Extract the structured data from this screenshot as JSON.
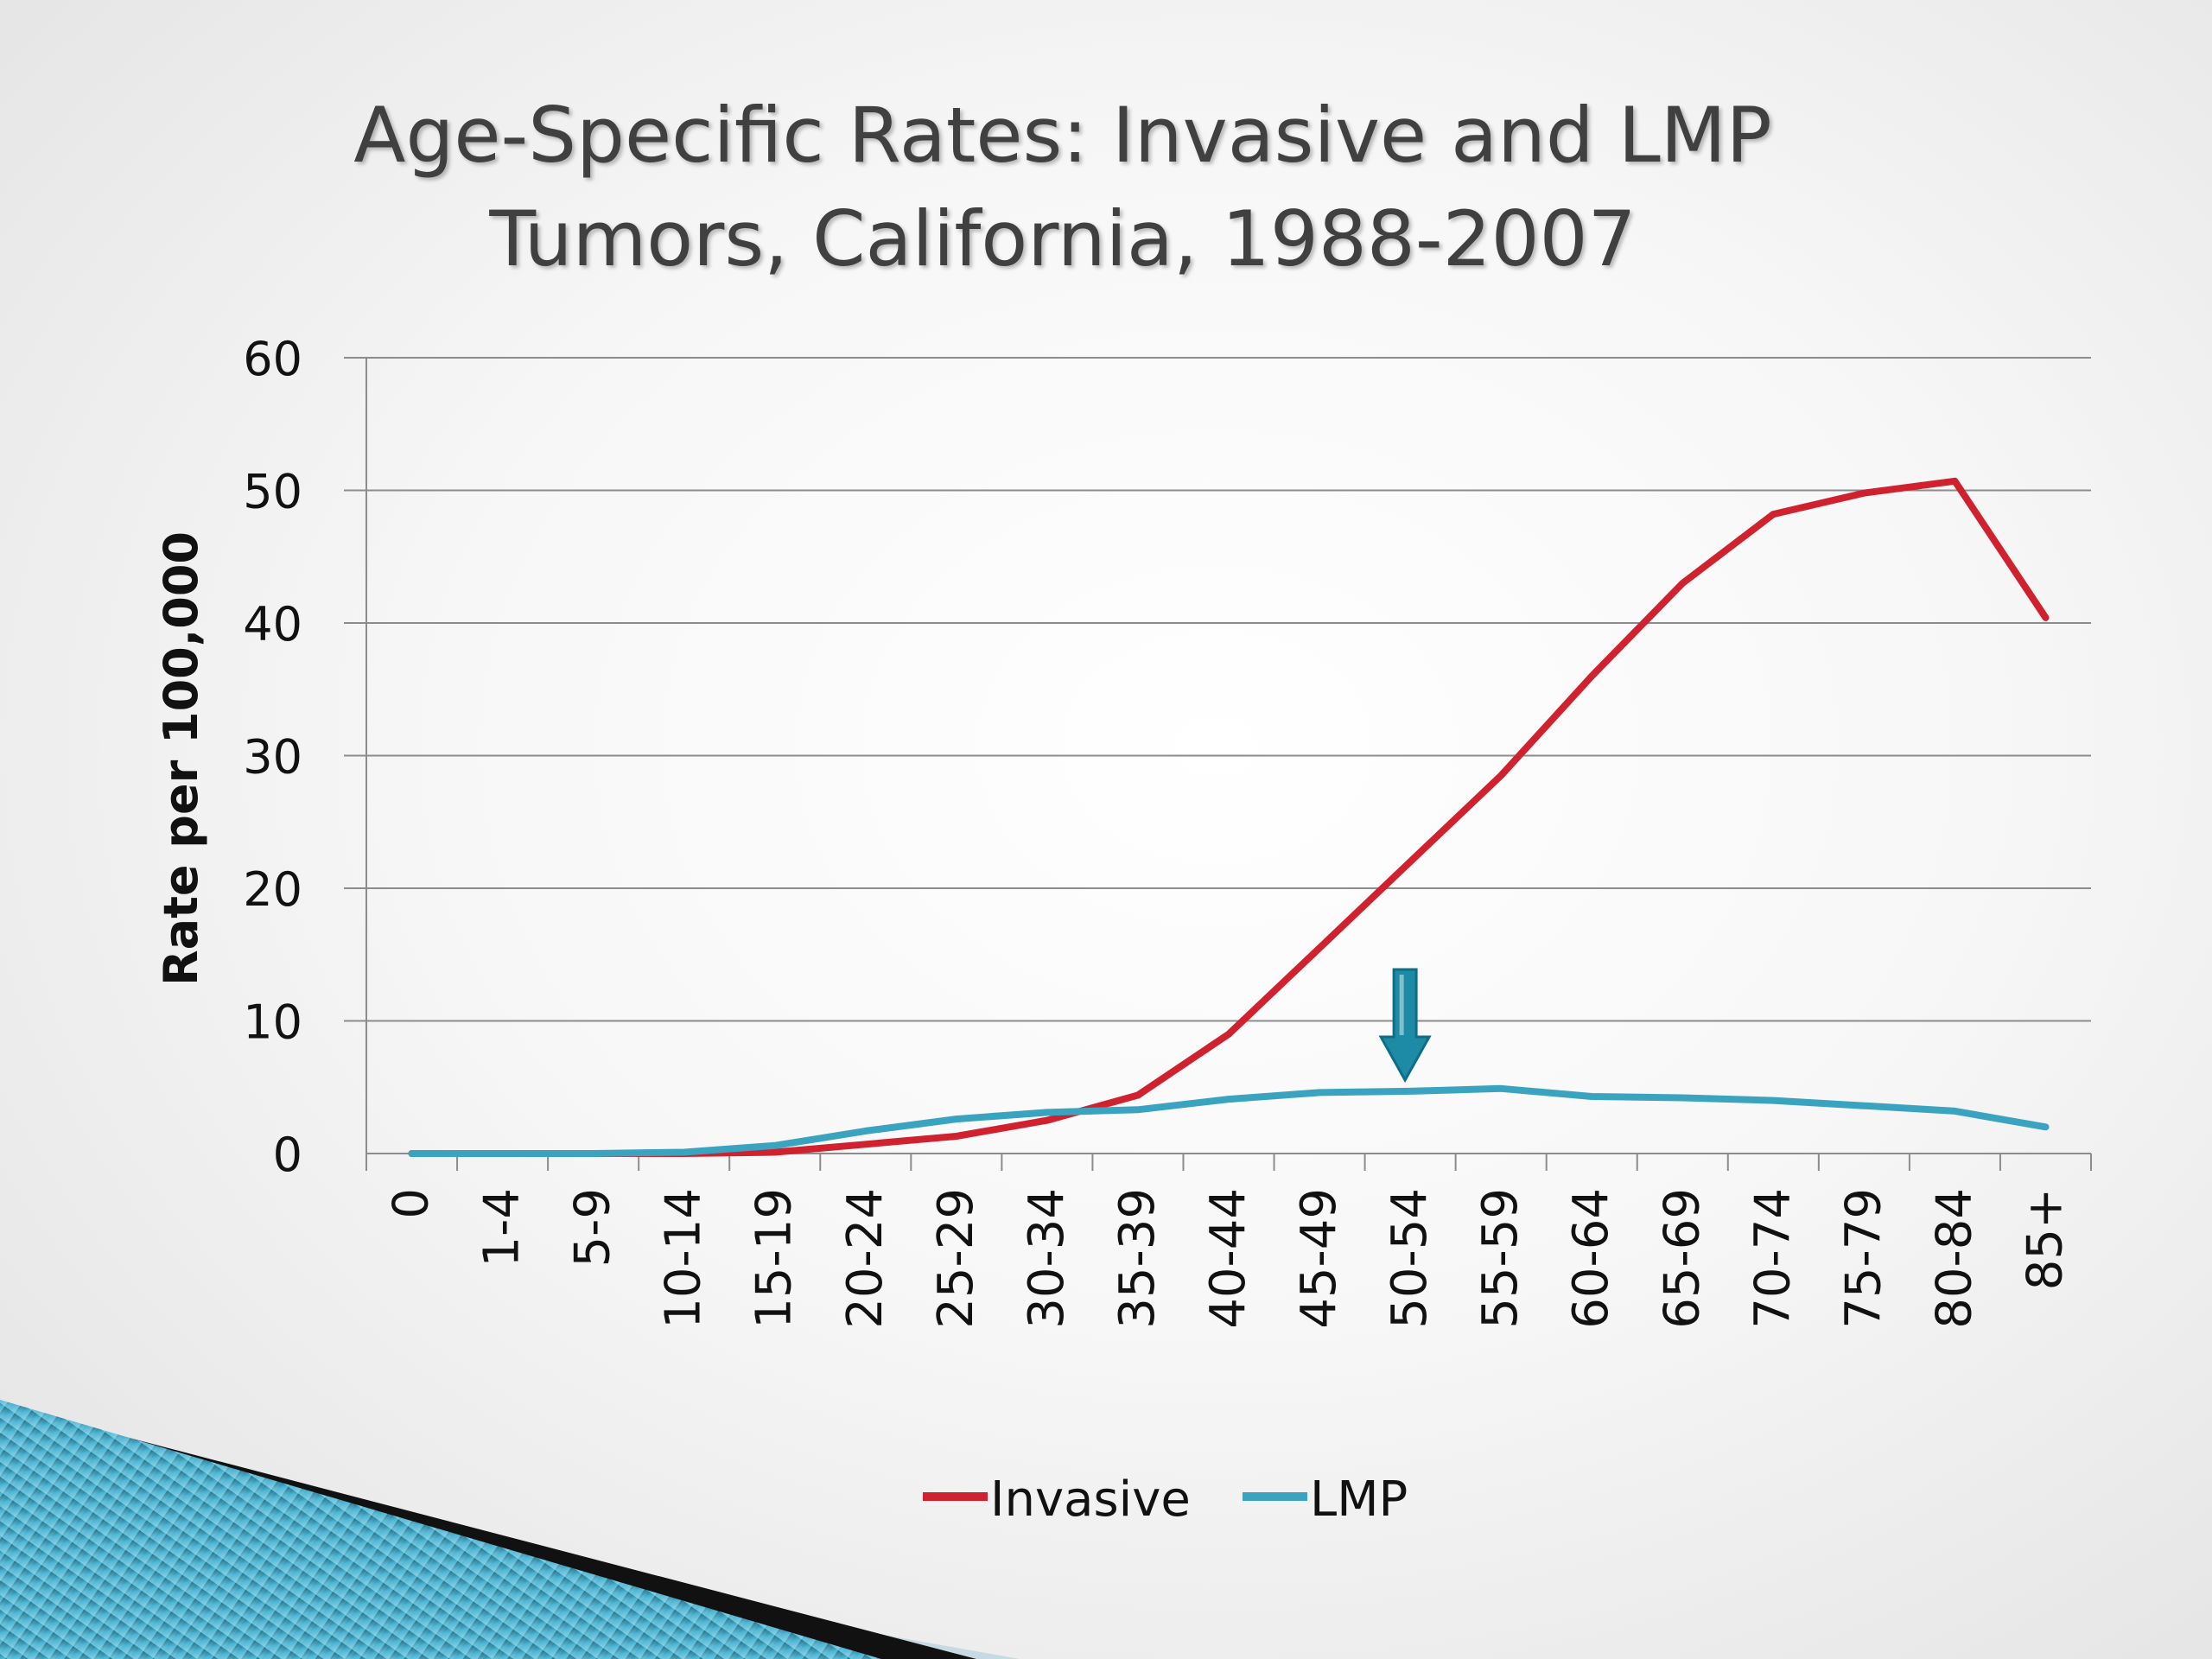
{
  "slide": {
    "title_line1": "Age-Specific Rates: Invasive and LMP",
    "title_line2": "Tumors, California, 1988-2007"
  },
  "colors": {
    "invasive": "#d0222e",
    "lmp": "#3aa3bf",
    "arrow": "#1d8aa6",
    "grid": "#8c8c8c",
    "text": "#111111"
  },
  "chart_data": {
    "type": "line",
    "title": "Age-Specific Rates: Invasive and LMP Tumors, California, 1988-2007",
    "ylabel": "Rate per 100,000",
    "xlabel": "",
    "ylim": [
      0,
      60
    ],
    "yticks": [
      0,
      10,
      20,
      30,
      40,
      50,
      60
    ],
    "grid": true,
    "legend_position": "bottom",
    "categories": [
      "0",
      "1-4",
      "5-9",
      "10-14",
      "15-19",
      "20-24",
      "25-29",
      "30-34",
      "35-39",
      "40-44",
      "45-49",
      "50-54",
      "55-59",
      "60-64",
      "65-69",
      "70-74",
      "75-79",
      "80-84",
      "85+"
    ],
    "series": [
      {
        "name": "Invasive",
        "values": [
          0,
          0,
          0,
          0,
          0.1,
          0.7,
          1.3,
          2.5,
          4.4,
          9.0,
          15.5,
          22.0,
          28.5,
          36.0,
          43.0,
          48.2,
          49.8,
          50.7,
          40.4
        ]
      },
      {
        "name": "LMP",
        "values": [
          0,
          0,
          0,
          0.1,
          0.6,
          1.7,
          2.6,
          3.1,
          3.3,
          4.1,
          4.6,
          4.7,
          4.9,
          4.3,
          4.2,
          4.0,
          3.6,
          3.2,
          2.0
        ]
      }
    ],
    "annotation": {
      "type": "arrow-down",
      "category": "50-54"
    }
  }
}
